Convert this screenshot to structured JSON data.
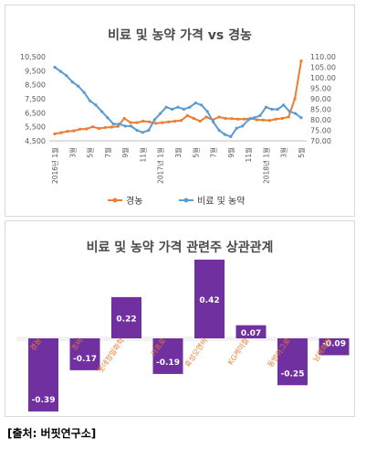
{
  "source": "[출처: 버핏연구소]",
  "chart_data": [
    {
      "type": "line",
      "title": "비료 및 농약 가격 vs 경농",
      "left_axis": {
        "ticks": [
          "10,500",
          "9,500",
          "8,500",
          "7,500",
          "6,500",
          "5,500",
          "4,500"
        ],
        "ylim": [
          4500,
          10500
        ]
      },
      "right_axis": {
        "ticks": [
          "110.00",
          "105.00",
          "100.00",
          "95.00",
          "90.00",
          "85.00",
          "80.00",
          "75.00",
          "70.00"
        ],
        "ylim": [
          70,
          110
        ]
      },
      "x_ticks": [
        "2016년 1월",
        "3월",
        "5월",
        "7월",
        "9월",
        "11월",
        "2017년 1월",
        "3월",
        "5월",
        "7월",
        "9월",
        "11월",
        "2018년 1월",
        "3월",
        "5월"
      ],
      "legend": [
        "경농",
        "비료 및 농약"
      ],
      "colors": {
        "경농": "#ed7d31",
        "비료 및 농약": "#5b9bd5"
      },
      "series": [
        {
          "name": "경농",
          "axis": "left",
          "values": [
            5000,
            5080,
            5180,
            5210,
            5330,
            5350,
            5500,
            5380,
            5450,
            5480,
            5530,
            6100,
            5800,
            5800,
            5900,
            5850,
            5750,
            5800,
            5850,
            5900,
            5950,
            6300,
            6100,
            5900,
            6200,
            6000,
            6200,
            6100,
            6080,
            6050,
            6050,
            6100,
            6000,
            5980,
            5950,
            6050,
            6100,
            6200,
            7500,
            10200
          ]
        },
        {
          "name": "비료 및 농약",
          "axis": "right",
          "values": [
            105,
            103,
            101,
            98,
            96,
            93,
            89,
            87,
            84,
            81,
            78,
            78,
            77,
            77,
            75,
            74,
            75,
            80,
            83,
            86,
            85,
            86,
            85,
            86,
            88,
            87,
            84,
            79,
            75,
            73,
            72,
            76,
            77,
            80,
            81,
            82,
            86,
            85,
            85,
            87,
            84,
            83,
            81
          ]
        }
      ]
    },
    {
      "type": "bar",
      "title": "비료 및 농약 가격 관련주 상관관계",
      "categories": [
        "경농",
        "조비",
        "롯데정밀화학",
        "카프로",
        "효성오앤비",
        "KG케미칼",
        "동방아그로",
        "남해화학"
      ],
      "values": [
        -0.39,
        -0.17,
        0.22,
        -0.19,
        0.42,
        0.07,
        -0.25,
        -0.09
      ],
      "value_labels": [
        "-0.39",
        "-0.17",
        "0.22",
        "-0.19",
        "0.42",
        "0.07",
        "-0.25",
        "-0.09"
      ],
      "bar_color": "#7030a0",
      "category_label_color": "#ed7d31"
    }
  ]
}
